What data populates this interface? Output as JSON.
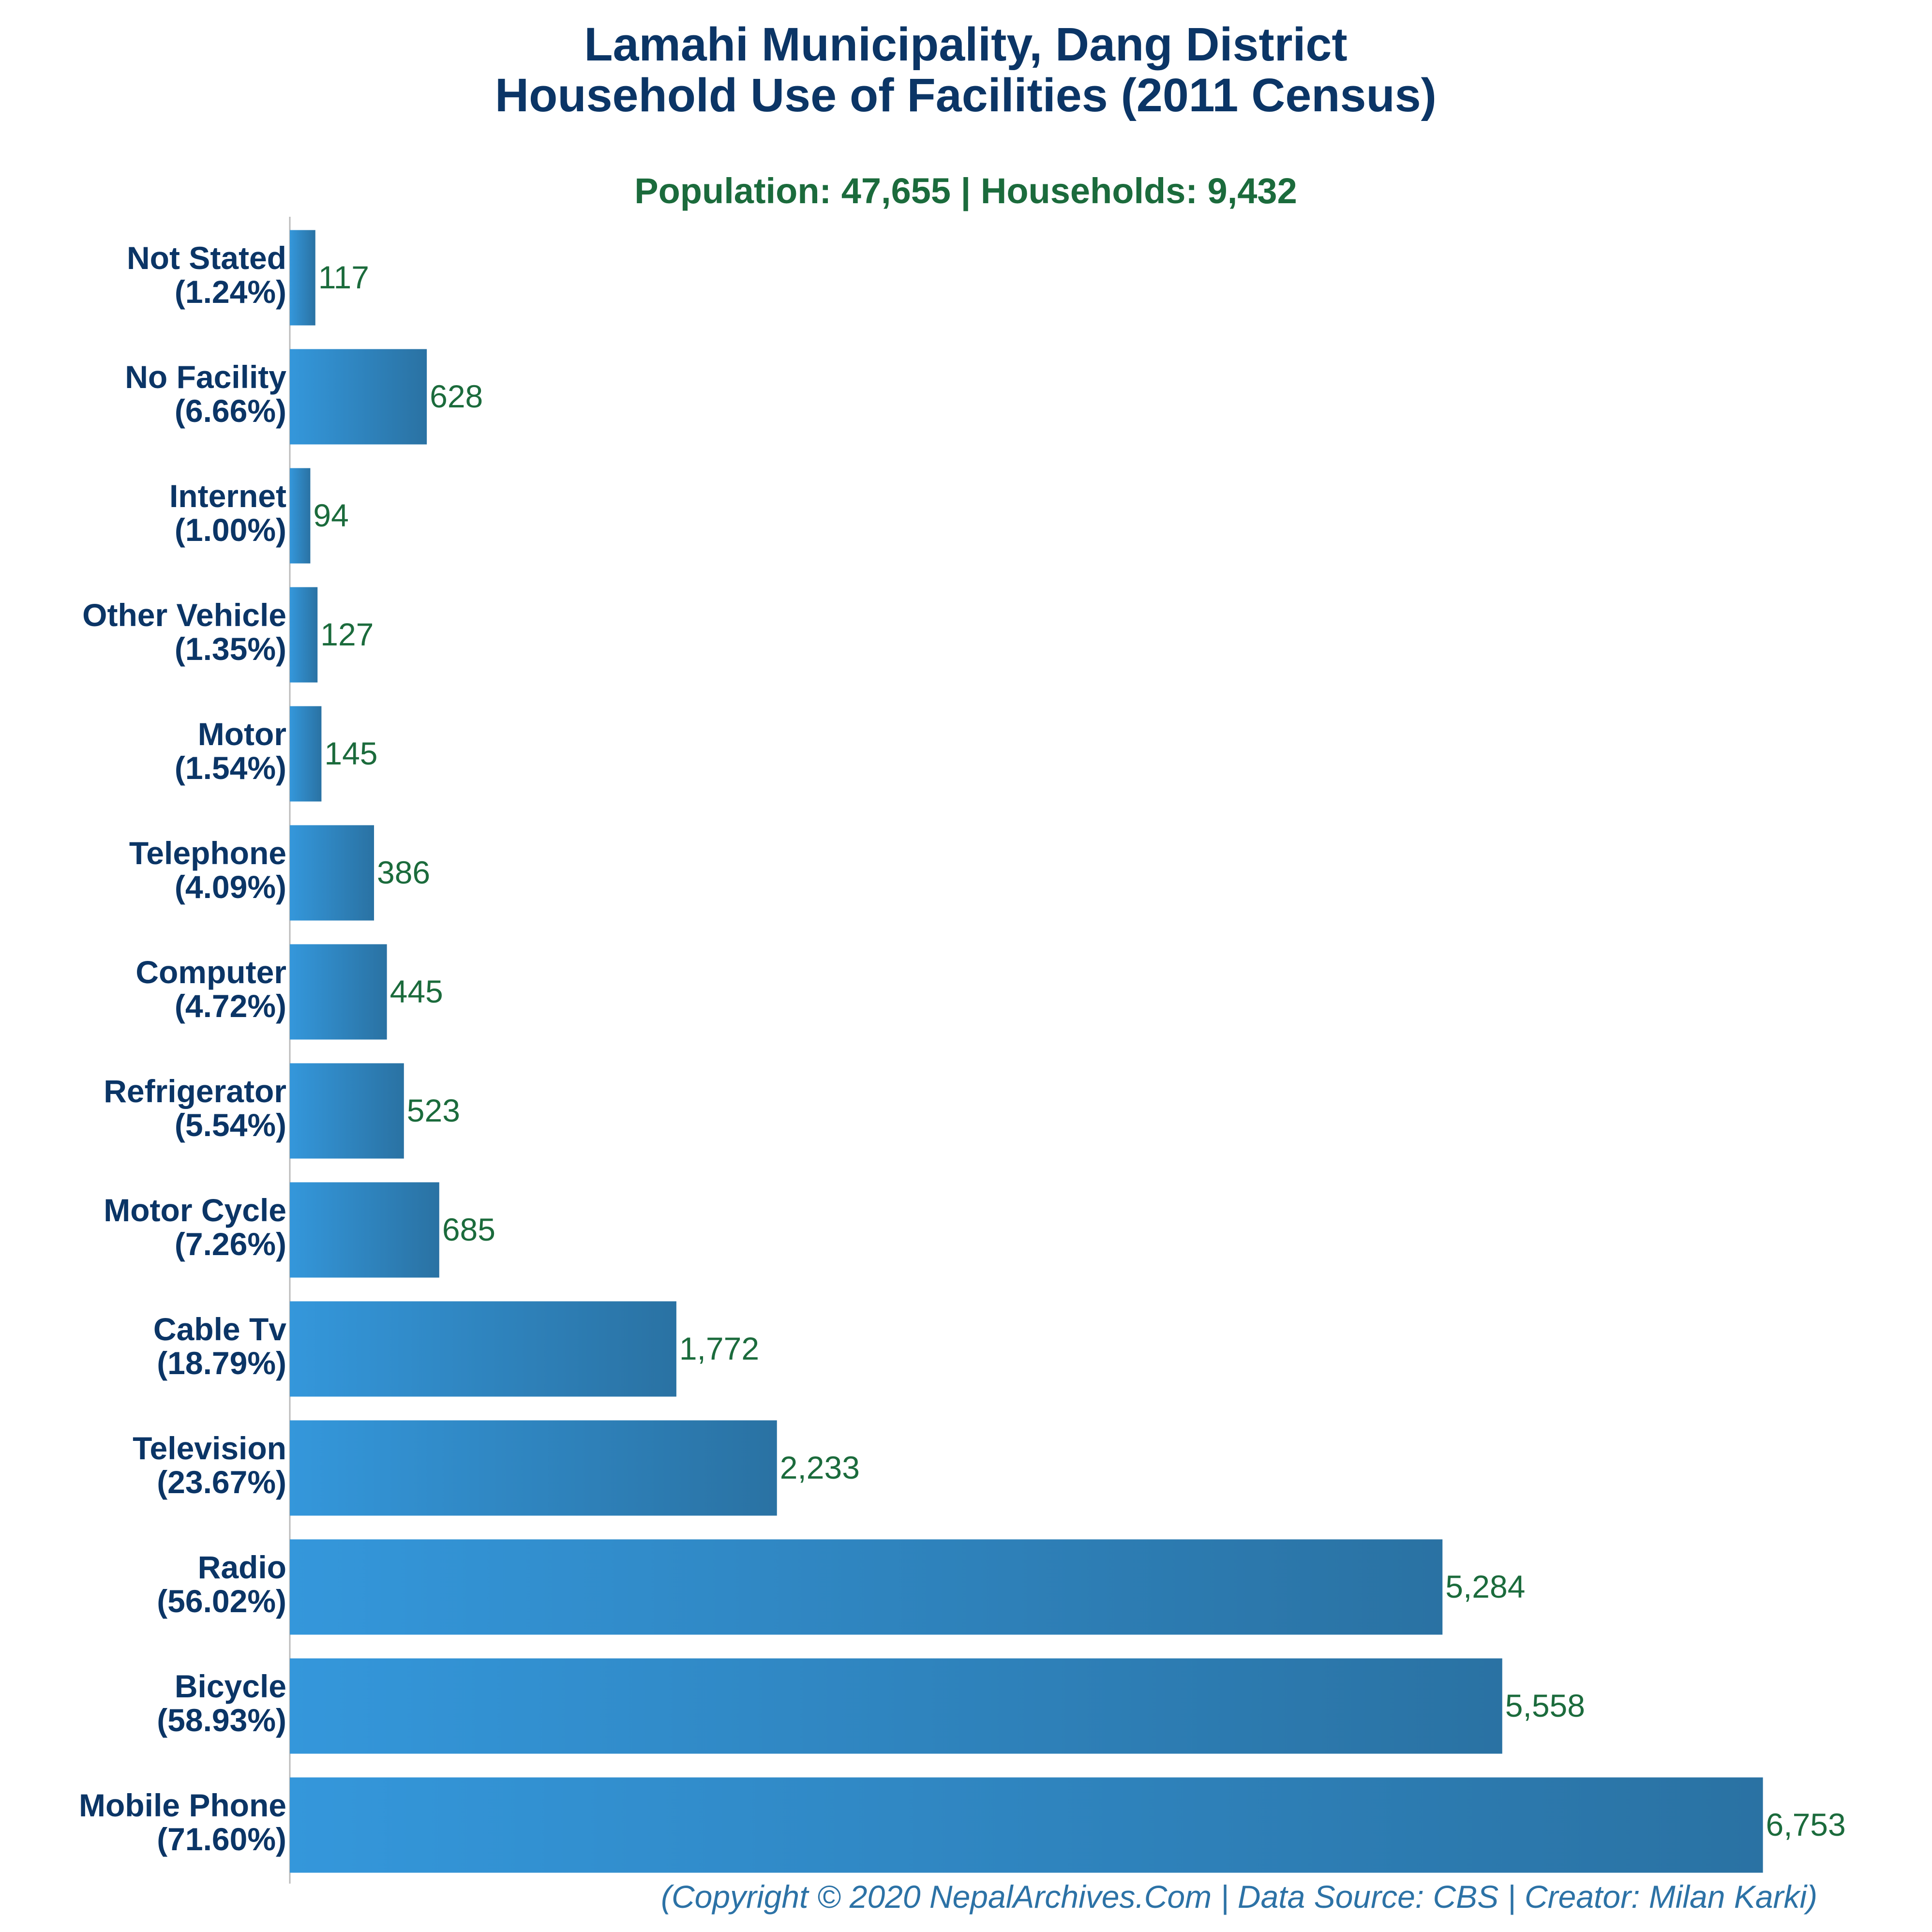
{
  "title_line1": "Lamahi Municipality, Dang District",
  "title_line2": "Household Use of Facilities (2011 Census)",
  "subtitle": "Population: 47,655 | Households: 9,432",
  "footer": "(Copyright © 2020 NepalArchives.Com | Data Source: CBS | Creator: Milan Karki)",
  "colors": {
    "title": "#0b3566",
    "subtitle": "#1b6b3c",
    "bar_light": "#3497db",
    "bar_dark": "#2a72a3",
    "value_label": "#1b6b3c",
    "footer": "#2c72a6",
    "axis": "#bbbbbb"
  },
  "chart_data": {
    "type": "bar",
    "orientation": "horizontal",
    "categories": [
      "Not Stated",
      "No Facility",
      "Internet",
      "Other Vehicle",
      "Motor",
      "Telephone",
      "Computer",
      "Refrigerator",
      "Motor Cycle",
      "Cable Tv",
      "Television",
      "Radio",
      "Bicycle",
      "Mobile Phone"
    ],
    "percent_labels": [
      "(1.24%)",
      "(6.66%)",
      "(1.00%)",
      "(1.35%)",
      "(1.54%)",
      "(4.09%)",
      "(4.72%)",
      "(5.54%)",
      "(7.26%)",
      "(18.79%)",
      "(23.67%)",
      "(56.02%)",
      "(58.93%)",
      "(71.60%)"
    ],
    "values": [
      117,
      628,
      94,
      127,
      145,
      386,
      445,
      523,
      685,
      1772,
      2233,
      5284,
      5558,
      6753
    ],
    "value_labels": [
      "117",
      "628",
      "94",
      "127",
      "145",
      "386",
      "445",
      "523",
      "685",
      "1,772",
      "2,233",
      "5,284",
      "5,558",
      "6,753"
    ],
    "xlim": [
      0,
      7100
    ],
    "grid": false,
    "legend": "none"
  }
}
